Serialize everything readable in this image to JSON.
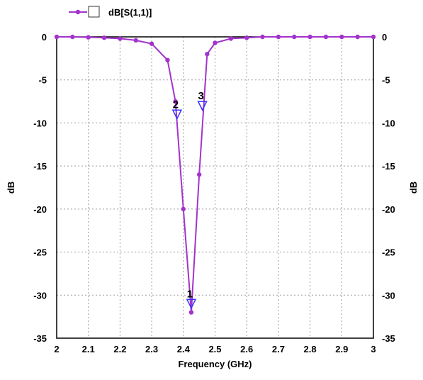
{
  "chart_data": {
    "type": "line",
    "title": "",
    "xlabel": "Frequency (GHz)",
    "ylabel_left": "dB",
    "ylabel_right": "dB",
    "xlim": [
      2,
      3
    ],
    "ylim": [
      -35,
      0
    ],
    "x_ticks": [
      2,
      2.1,
      2.2,
      2.3,
      2.4,
      2.5,
      2.6,
      2.7,
      2.8,
      2.9,
      3
    ],
    "x_tick_labels": [
      "2",
      "2.1",
      "2.2",
      "2.3",
      "2.4",
      "2.5",
      "2.6",
      "2.7",
      "2.8",
      "2.9",
      "3"
    ],
    "y_ticks": [
      0,
      -5,
      -10,
      -15,
      -20,
      -25,
      -30,
      -35
    ],
    "y_tick_labels": [
      "0",
      "-5",
      "-10",
      "-15",
      "-20",
      "-25",
      "-30",
      "-35"
    ],
    "grid": true,
    "legend_position": "top-left",
    "series": [
      {
        "name": "dB[S(1,1)]",
        "color": "#a333cc",
        "x": [
          2.0,
          2.05,
          2.1,
          2.15,
          2.2,
          2.25,
          2.3,
          2.35,
          2.375,
          2.4,
          2.425,
          2.45,
          2.475,
          2.5,
          2.55,
          2.6,
          2.65,
          2.7,
          2.75,
          2.8,
          2.85,
          2.9,
          2.95,
          3.0
        ],
        "y": [
          0,
          0,
          -0.05,
          -0.1,
          -0.2,
          -0.4,
          -0.8,
          -2.7,
          -7.5,
          -20,
          -32,
          -16,
          -2.0,
          -0.7,
          -0.2,
          -0.1,
          0,
          0,
          0,
          0,
          0,
          0,
          0,
          0
        ]
      }
    ],
    "markers": [
      {
        "label": "1",
        "x": 2.425,
        "y": -31
      },
      {
        "label": "2",
        "x": 2.38,
        "y": -9
      },
      {
        "label": "3",
        "x": 2.46,
        "y": -8
      }
    ]
  }
}
